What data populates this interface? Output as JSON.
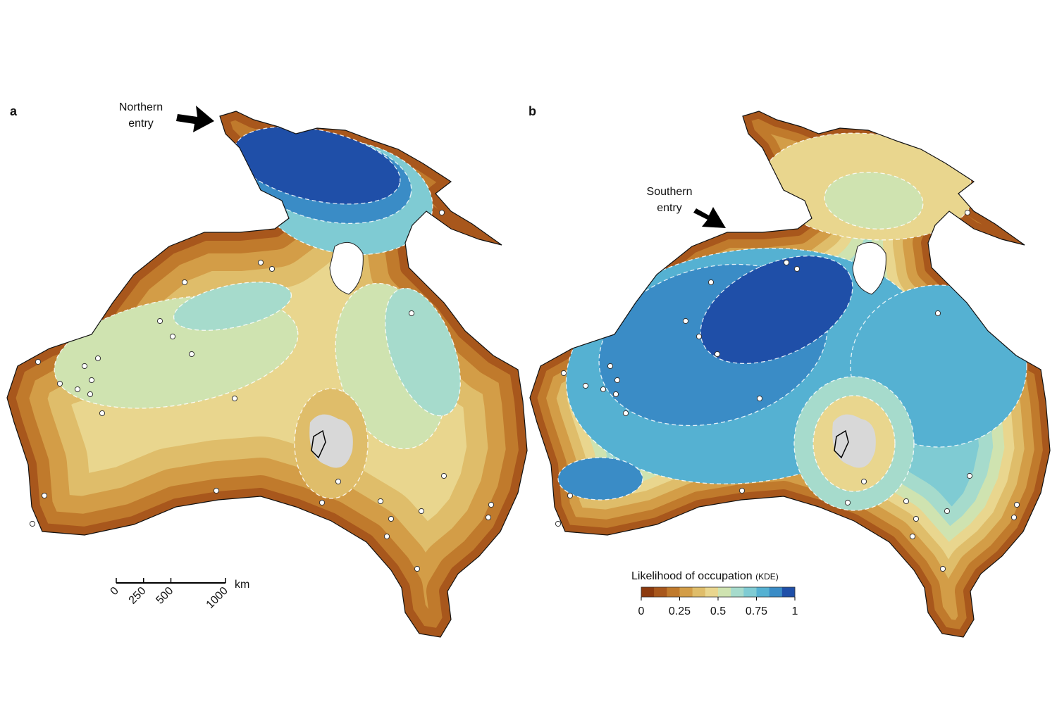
{
  "panels": [
    {
      "label": "a",
      "annotation": [
        "Northern",
        "entry"
      ]
    },
    {
      "label": "b",
      "annotation": [
        "Southern",
        "entry"
      ]
    }
  ],
  "scale_bar": {
    "ticks": [
      0,
      250,
      500,
      1000
    ],
    "unit": "km"
  },
  "legend": {
    "title": "Likelihood of occupation",
    "title_suffix": "(KDE)",
    "ticks": [
      0,
      0.25,
      0.5,
      0.75,
      1
    ],
    "colors": [
      "#8c3a0e",
      "#a8571c",
      "#c07a2c",
      "#d39d47",
      "#dfbd6a",
      "#e9d68e",
      "#cfe3b0",
      "#a6dbcc",
      "#7fcbd3",
      "#55b1d2",
      "#3a8cc6",
      "#1f4fa8"
    ]
  }
}
